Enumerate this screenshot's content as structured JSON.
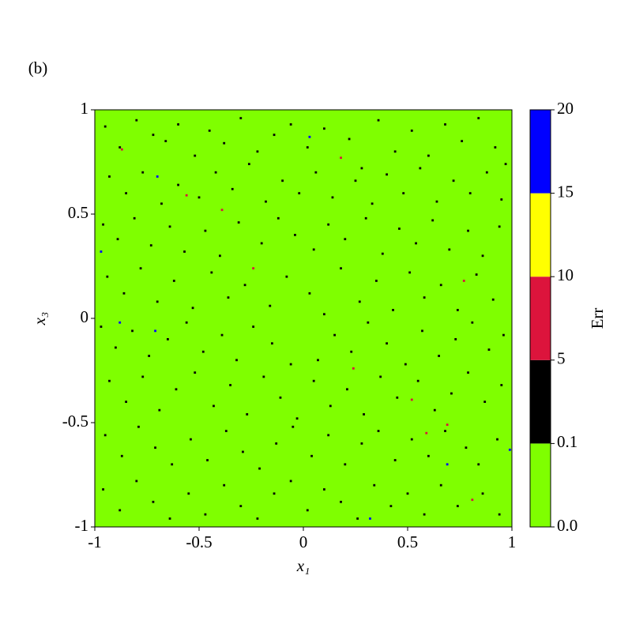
{
  "chart_data": {
    "type": "heatmap",
    "panel_label": "(b)",
    "xlabel": "x₁",
    "ylabel": "x₃",
    "xlim": [
      -1,
      1
    ],
    "ylim": [
      -1,
      1
    ],
    "xticks": [
      -1,
      -0.5,
      0,
      0.5,
      1
    ],
    "yticks": [
      -1,
      -0.5,
      0,
      0.5,
      1
    ],
    "colorbar": {
      "label": "Err",
      "levels": [
        {
          "value": 0,
          "label": "0.0"
        },
        0.1,
        5,
        10,
        15,
        20
      ],
      "colors": [
        "#7fff00",
        "#000000",
        "#dc143c",
        "#ffff00",
        "#0000ff"
      ]
    },
    "cells": [
      [
        -0.95,
        0.92,
        1
      ],
      [
        -0.88,
        0.82,
        1
      ],
      [
        -0.8,
        0.95,
        1
      ],
      [
        -0.72,
        0.88,
        1
      ],
      [
        -0.66,
        0.85,
        1
      ],
      [
        -0.6,
        0.93,
        1
      ],
      [
        -0.52,
        0.78,
        1
      ],
      [
        -0.45,
        0.9,
        1
      ],
      [
        -0.38,
        0.84,
        1
      ],
      [
        -0.3,
        0.96,
        1
      ],
      [
        -0.22,
        0.8,
        1
      ],
      [
        -0.14,
        0.88,
        1
      ],
      [
        -0.06,
        0.93,
        1
      ],
      [
        0.02,
        0.82,
        1
      ],
      [
        0.1,
        0.91,
        1
      ],
      [
        0.22,
        0.86,
        1
      ],
      [
        0.28,
        0.72,
        1
      ],
      [
        0.36,
        0.95,
        1
      ],
      [
        0.44,
        0.8,
        1
      ],
      [
        0.52,
        0.9,
        1
      ],
      [
        0.6,
        0.78,
        1
      ],
      [
        0.68,
        0.93,
        1
      ],
      [
        0.76,
        0.85,
        1
      ],
      [
        0.84,
        0.96,
        1
      ],
      [
        0.92,
        0.82,
        1
      ],
      [
        0.97,
        0.74,
        1
      ],
      [
        -0.93,
        0.68,
        1
      ],
      [
        -0.85,
        0.6,
        1
      ],
      [
        -0.77,
        0.7,
        1
      ],
      [
        -0.68,
        0.55,
        1
      ],
      [
        -0.6,
        0.64,
        1
      ],
      [
        -0.5,
        0.58,
        1
      ],
      [
        -0.42,
        0.7,
        1
      ],
      [
        -0.34,
        0.62,
        1
      ],
      [
        -0.26,
        0.74,
        1
      ],
      [
        -0.18,
        0.56,
        1
      ],
      [
        -0.1,
        0.66,
        1
      ],
      [
        -0.02,
        0.6,
        1
      ],
      [
        0.06,
        0.7,
        1
      ],
      [
        0.14,
        0.58,
        1
      ],
      [
        0.25,
        0.66,
        1
      ],
      [
        0.33,
        0.55,
        1
      ],
      [
        0.4,
        0.69,
        1
      ],
      [
        0.48,
        0.6,
        1
      ],
      [
        0.56,
        0.72,
        1
      ],
      [
        0.64,
        0.56,
        1
      ],
      [
        0.72,
        0.66,
        1
      ],
      [
        0.8,
        0.6,
        1
      ],
      [
        0.88,
        0.7,
        1
      ],
      [
        0.95,
        0.57,
        1
      ],
      [
        -0.96,
        0.45,
        1
      ],
      [
        -0.89,
        0.38,
        1
      ],
      [
        -0.81,
        0.48,
        1
      ],
      [
        -0.73,
        0.35,
        1
      ],
      [
        -0.64,
        0.44,
        1
      ],
      [
        -0.57,
        0.32,
        1
      ],
      [
        -0.47,
        0.42,
        1
      ],
      [
        -0.4,
        0.3,
        1
      ],
      [
        -0.31,
        0.46,
        1
      ],
      [
        -0.2,
        0.36,
        1
      ],
      [
        -0.12,
        0.48,
        1
      ],
      [
        -0.04,
        0.4,
        1
      ],
      [
        0.05,
        0.33,
        1
      ],
      [
        0.12,
        0.45,
        1
      ],
      [
        0.2,
        0.38,
        1
      ],
      [
        0.3,
        0.48,
        1
      ],
      [
        0.38,
        0.31,
        1
      ],
      [
        0.46,
        0.43,
        1
      ],
      [
        0.54,
        0.36,
        1
      ],
      [
        0.62,
        0.47,
        1
      ],
      [
        0.7,
        0.33,
        1
      ],
      [
        0.79,
        0.42,
        1
      ],
      [
        0.86,
        0.3,
        1
      ],
      [
        0.94,
        0.44,
        1
      ],
      [
        -0.94,
        0.2,
        1
      ],
      [
        -0.86,
        0.12,
        1
      ],
      [
        -0.78,
        0.24,
        1
      ],
      [
        -0.7,
        0.08,
        1
      ],
      [
        -0.62,
        0.18,
        1
      ],
      [
        -0.53,
        0.05,
        1
      ],
      [
        -0.44,
        0.22,
        1
      ],
      [
        -0.36,
        0.1,
        1
      ],
      [
        -0.28,
        0.16,
        1
      ],
      [
        -0.16,
        0.06,
        1
      ],
      [
        -0.08,
        0.2,
        1
      ],
      [
        0.03,
        0.12,
        1
      ],
      [
        0.1,
        0.02,
        1
      ],
      [
        0.18,
        0.24,
        1
      ],
      [
        0.27,
        0.08,
        1
      ],
      [
        0.35,
        0.18,
        1
      ],
      [
        0.43,
        0.04,
        1
      ],
      [
        0.51,
        0.22,
        1
      ],
      [
        0.58,
        0.1,
        1
      ],
      [
        0.66,
        0.16,
        1
      ],
      [
        0.74,
        0.04,
        1
      ],
      [
        0.83,
        0.21,
        1
      ],
      [
        0.91,
        0.09,
        1
      ],
      [
        -0.97,
        -0.04,
        1
      ],
      [
        -0.9,
        -0.14,
        1
      ],
      [
        -0.82,
        -0.06,
        1
      ],
      [
        -0.74,
        -0.18,
        1
      ],
      [
        -0.65,
        -0.1,
        1
      ],
      [
        -0.56,
        -0.02,
        1
      ],
      [
        -0.48,
        -0.16,
        1
      ],
      [
        -0.39,
        -0.08,
        1
      ],
      [
        -0.32,
        -0.2,
        1
      ],
      [
        -0.24,
        -0.04,
        1
      ],
      [
        -0.15,
        -0.12,
        1
      ],
      [
        -0.06,
        -0.22,
        1
      ],
      [
        0.07,
        -0.2,
        1
      ],
      [
        0.15,
        -0.08,
        1
      ],
      [
        0.23,
        -0.16,
        1
      ],
      [
        0.31,
        -0.02,
        1
      ],
      [
        0.4,
        -0.12,
        1
      ],
      [
        0.49,
        -0.22,
        1
      ],
      [
        0.57,
        -0.06,
        1
      ],
      [
        0.65,
        -0.18,
        1
      ],
      [
        0.73,
        -0.1,
        1
      ],
      [
        0.81,
        -0.02,
        1
      ],
      [
        0.89,
        -0.15,
        1
      ],
      [
        0.96,
        -0.08,
        1
      ],
      [
        -0.93,
        -0.3,
        1
      ],
      [
        -0.85,
        -0.4,
        1
      ],
      [
        -0.77,
        -0.28,
        1
      ],
      [
        -0.69,
        -0.44,
        1
      ],
      [
        -0.61,
        -0.34,
        1
      ],
      [
        -0.52,
        -0.26,
        1
      ],
      [
        -0.43,
        -0.42,
        1
      ],
      [
        -0.35,
        -0.32,
        1
      ],
      [
        -0.27,
        -0.46,
        1
      ],
      [
        -0.19,
        -0.28,
        1
      ],
      [
        -0.11,
        -0.38,
        1
      ],
      [
        -0.03,
        -0.48,
        1
      ],
      [
        0.05,
        -0.3,
        1
      ],
      [
        0.13,
        -0.42,
        1
      ],
      [
        0.21,
        -0.34,
        1
      ],
      [
        0.29,
        -0.46,
        1
      ],
      [
        0.37,
        -0.28,
        1
      ],
      [
        0.45,
        -0.38,
        1
      ],
      [
        0.55,
        -0.3,
        1
      ],
      [
        0.63,
        -0.44,
        1
      ],
      [
        0.71,
        -0.36,
        1
      ],
      [
        0.79,
        -0.26,
        1
      ],
      [
        0.87,
        -0.4,
        1
      ],
      [
        0.95,
        -0.32,
        1
      ],
      [
        -0.95,
        -0.56,
        1
      ],
      [
        -0.87,
        -0.66,
        1
      ],
      [
        -0.79,
        -0.52,
        1
      ],
      [
        -0.71,
        -0.62,
        1
      ],
      [
        -0.63,
        -0.7,
        1
      ],
      [
        -0.54,
        -0.58,
        1
      ],
      [
        -0.46,
        -0.68,
        1
      ],
      [
        -0.37,
        -0.54,
        1
      ],
      [
        -0.29,
        -0.64,
        1
      ],
      [
        -0.21,
        -0.72,
        1
      ],
      [
        -0.13,
        -0.6,
        1
      ],
      [
        -0.05,
        -0.52,
        1
      ],
      [
        0.04,
        -0.66,
        1
      ],
      [
        0.12,
        -0.56,
        1
      ],
      [
        0.2,
        -0.7,
        1
      ],
      [
        0.28,
        -0.6,
        1
      ],
      [
        0.36,
        -0.54,
        1
      ],
      [
        0.44,
        -0.68,
        1
      ],
      [
        0.52,
        -0.58,
        1
      ],
      [
        0.6,
        -0.66,
        1
      ],
      [
        0.68,
        -0.54,
        1
      ],
      [
        0.78,
        -0.62,
        1
      ],
      [
        0.84,
        -0.7,
        1
      ],
      [
        0.93,
        -0.58,
        1
      ],
      [
        -0.96,
        -0.82,
        1
      ],
      [
        -0.88,
        -0.92,
        1
      ],
      [
        -0.8,
        -0.78,
        1
      ],
      [
        -0.72,
        -0.88,
        1
      ],
      [
        -0.64,
        -0.96,
        1
      ],
      [
        -0.55,
        -0.84,
        1
      ],
      [
        -0.47,
        -0.94,
        1
      ],
      [
        -0.38,
        -0.8,
        1
      ],
      [
        -0.3,
        -0.9,
        1
      ],
      [
        -0.22,
        -0.96,
        1
      ],
      [
        -0.14,
        -0.84,
        1
      ],
      [
        -0.06,
        -0.78,
        1
      ],
      [
        0.02,
        -0.92,
        1
      ],
      [
        0.1,
        -0.82,
        1
      ],
      [
        0.18,
        -0.88,
        1
      ],
      [
        0.26,
        -0.96,
        1
      ],
      [
        0.34,
        -0.8,
        1
      ],
      [
        0.42,
        -0.9,
        1
      ],
      [
        0.5,
        -0.84,
        1
      ],
      [
        0.58,
        -0.94,
        1
      ],
      [
        0.66,
        -0.8,
        1
      ],
      [
        0.74,
        -0.9,
        1
      ],
      [
        0.86,
        -0.84,
        1
      ],
      [
        0.94,
        -0.94,
        1
      ],
      [
        -0.87,
        0.81,
        7
      ],
      [
        0.18,
        0.77,
        7
      ],
      [
        -0.56,
        0.59,
        7
      ],
      [
        -0.39,
        0.52,
        7
      ],
      [
        -0.24,
        0.24,
        7
      ],
      [
        0.77,
        0.18,
        7
      ],
      [
        0.24,
        -0.24,
        7
      ],
      [
        0.52,
        -0.39,
        7
      ],
      [
        0.59,
        -0.55,
        7
      ],
      [
        0.69,
        -0.51,
        7
      ],
      [
        0.81,
        -0.87,
        7
      ],
      [
        -0.97,
        0.32,
        18
      ],
      [
        -0.7,
        0.68,
        18
      ],
      [
        0.03,
        0.87,
        18
      ],
      [
        -0.88,
        -0.02,
        18
      ],
      [
        -0.71,
        -0.06,
        18
      ],
      [
        0.32,
        -0.96,
        18
      ],
      [
        0.69,
        -0.7,
        18
      ],
      [
        0.99,
        -0.63,
        18
      ]
    ]
  }
}
